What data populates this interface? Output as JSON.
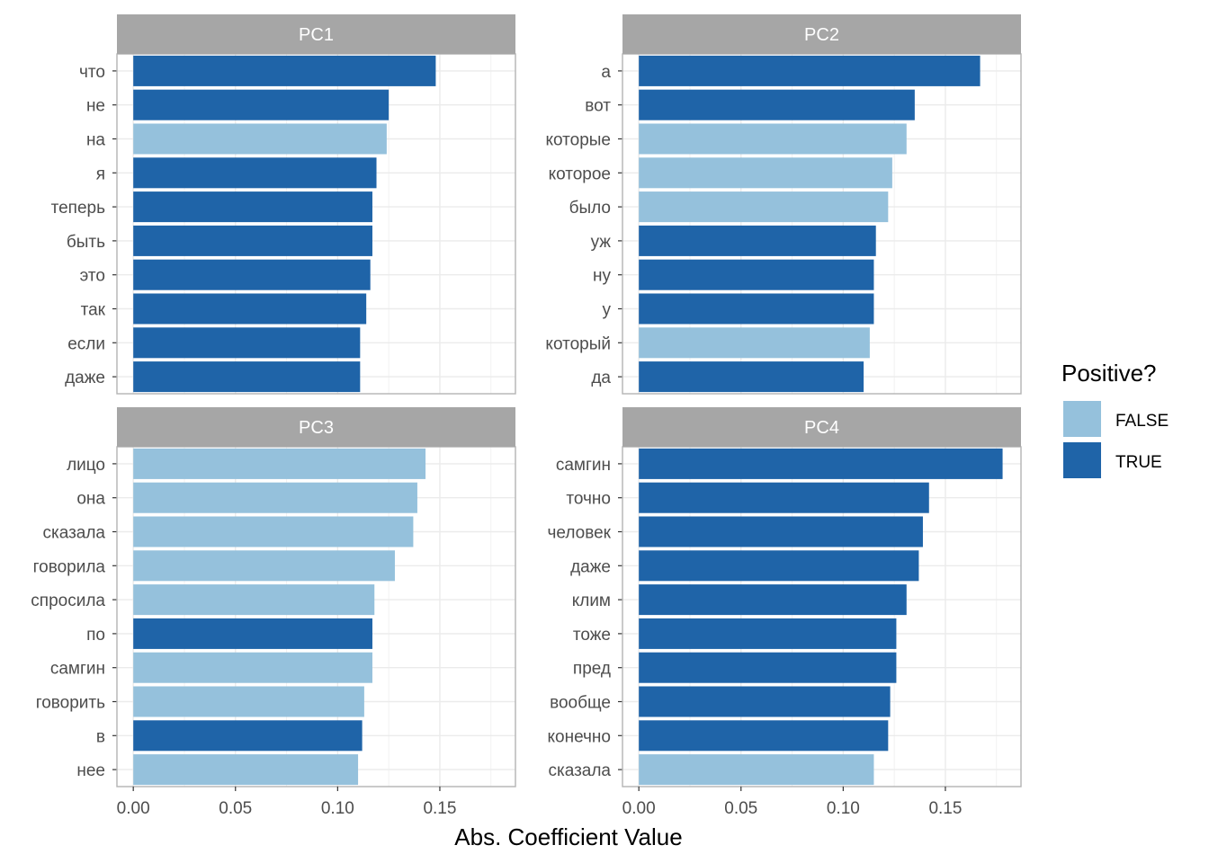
{
  "chart_data": {
    "type": "bar",
    "orientation": "horizontal",
    "facets": [
      {
        "title": "PC1",
        "categories": [
          "что",
          "не",
          "на",
          "я",
          "теперь",
          "быть",
          "это",
          "так",
          "если",
          "даже"
        ],
        "values": [
          0.148,
          0.125,
          0.124,
          0.119,
          0.117,
          0.117,
          0.116,
          0.114,
          0.111,
          0.111
        ],
        "positive": [
          true,
          true,
          false,
          true,
          true,
          true,
          true,
          true,
          true,
          true
        ]
      },
      {
        "title": "PC2",
        "categories": [
          "а",
          "вот",
          "которые",
          "которое",
          "было",
          "уж",
          "ну",
          "у",
          "который",
          "да"
        ],
        "values": [
          0.167,
          0.135,
          0.131,
          0.124,
          0.122,
          0.116,
          0.115,
          0.115,
          0.113,
          0.11
        ],
        "positive": [
          true,
          true,
          false,
          false,
          false,
          true,
          true,
          true,
          false,
          true
        ]
      },
      {
        "title": "PC3",
        "categories": [
          "лицо",
          "она",
          "сказала",
          "говорила",
          "спросила",
          "по",
          "самгин",
          "говорить",
          "в",
          "нее"
        ],
        "values": [
          0.143,
          0.139,
          0.137,
          0.128,
          0.118,
          0.117,
          0.117,
          0.113,
          0.112,
          0.11
        ],
        "positive": [
          false,
          false,
          false,
          false,
          false,
          true,
          false,
          false,
          true,
          false
        ]
      },
      {
        "title": "PC4",
        "categories": [
          "самгин",
          "точно",
          "человек",
          "даже",
          "клим",
          "тоже",
          "пред",
          "вообще",
          "конечно",
          "сказала"
        ],
        "values": [
          0.178,
          0.142,
          0.139,
          0.137,
          0.131,
          0.126,
          0.126,
          0.123,
          0.122,
          0.115
        ],
        "positive": [
          true,
          true,
          true,
          true,
          true,
          true,
          true,
          true,
          true,
          false
        ]
      }
    ],
    "x_ticks": [
      "0.00",
      "0.05",
      "0.10",
      "0.15"
    ],
    "x_tick_values": [
      0,
      0.05,
      0.1,
      0.15
    ],
    "xlim": [
      -0.008,
      0.187
    ],
    "xlabel": "Abs. Coefficient Value",
    "ylabel": "",
    "grid": true,
    "legend": {
      "title": "Positive?",
      "placement": "right",
      "entries": [
        {
          "label": "FALSE",
          "color": "#95c1dc"
        },
        {
          "label": "TRUE",
          "color": "#1f64a8"
        }
      ]
    },
    "colors": {
      "false": "#95c1dc",
      "true": "#1f64a8",
      "strip": "#a6a6a6",
      "grid": "#ebebeb",
      "panel_border": "#b3b3b3"
    }
  }
}
